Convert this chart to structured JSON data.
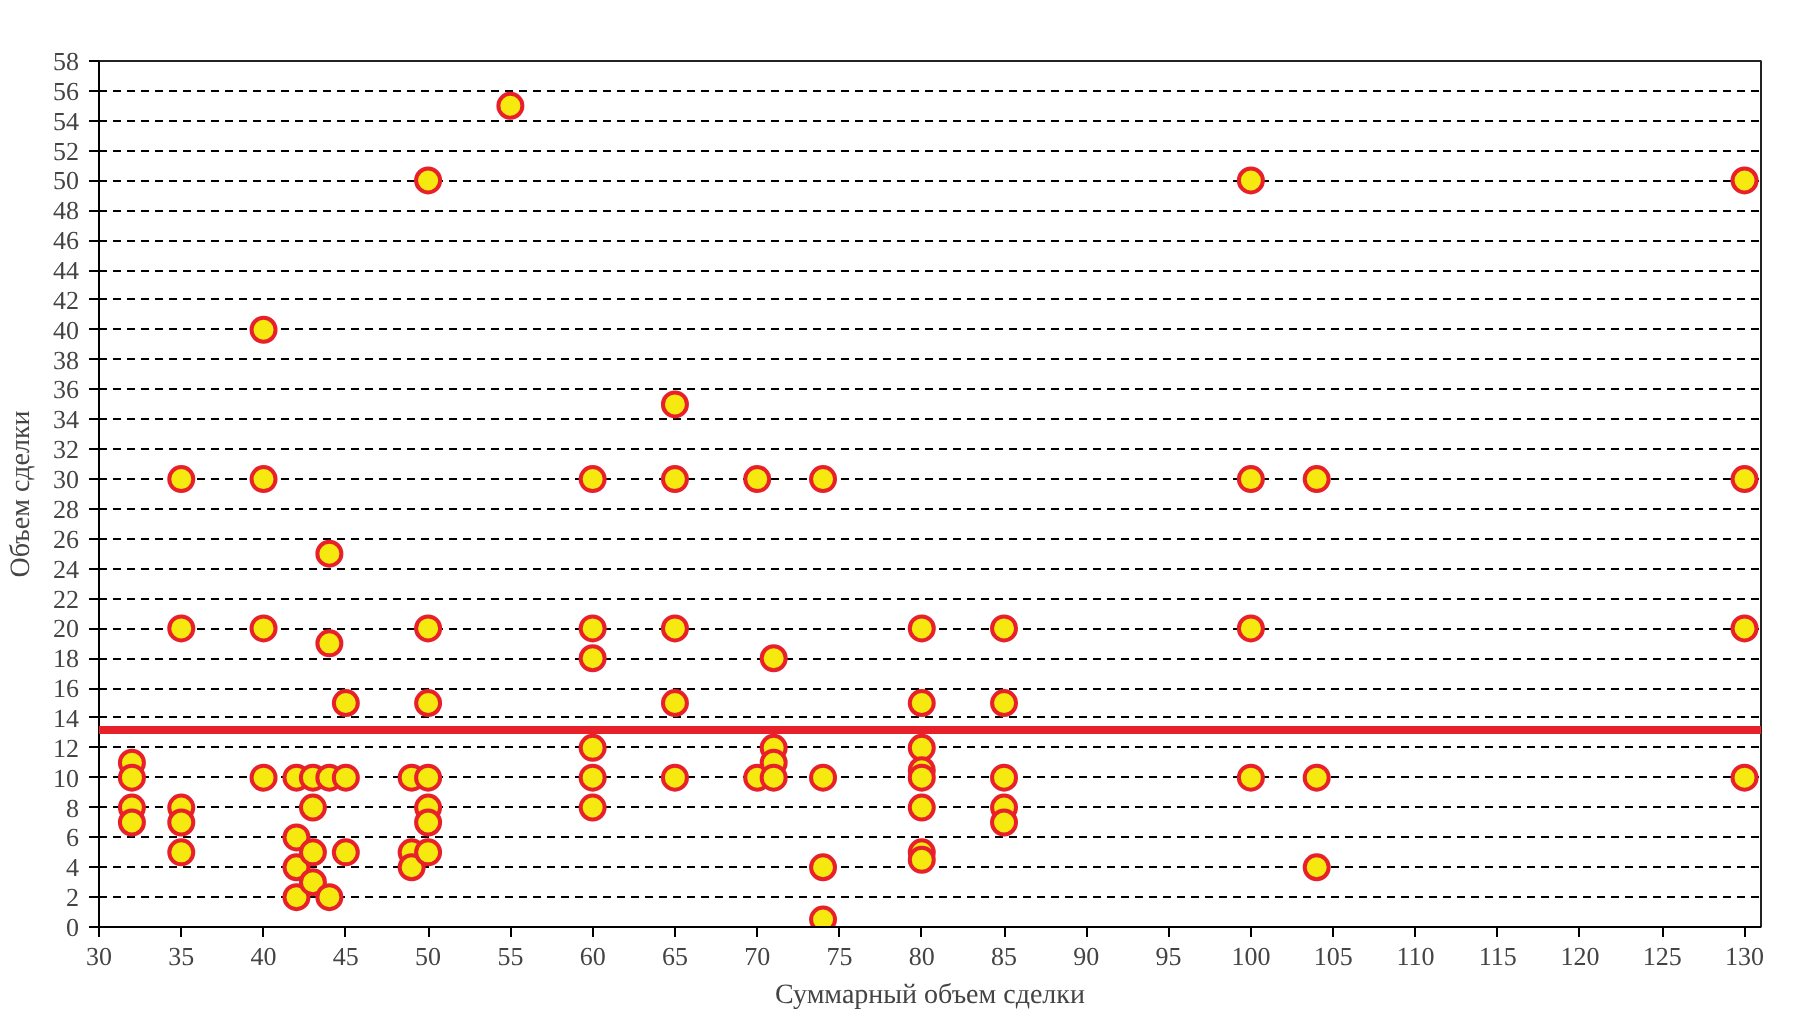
{
  "chart_data": {
    "type": "scatter",
    "xlabel": "Суммарный объем сделки",
    "ylabel": "Объем сделки",
    "x": [
      32,
      32,
      32,
      32,
      35,
      35,
      35,
      35,
      35,
      40,
      40,
      40,
      40,
      42,
      42,
      42,
      42,
      43,
      43,
      43,
      43,
      44,
      44,
      44,
      44,
      45,
      45,
      45,
      49,
      49,
      49,
      50,
      50,
      50,
      50,
      50,
      50,
      50,
      55,
      60,
      60,
      60,
      60,
      60,
      60,
      65,
      65,
      65,
      65,
      65,
      70,
      70,
      71,
      71,
      71,
      71,
      74,
      74,
      74,
      74,
      80,
      80,
      80,
      80,
      80,
      80,
      80,
      80,
      85,
      85,
      85,
      85,
      85,
      100,
      100,
      100,
      100,
      104,
      104,
      104,
      130,
      130,
      130,
      130
    ],
    "series": [
      {
        "color": "#f5e90f",
        "values": [
          11,
          10,
          8,
          7,
          30,
          20,
          8,
          7,
          5,
          40,
          30,
          20,
          10,
          10,
          6,
          4,
          2,
          10,
          8,
          5,
          3,
          25,
          19,
          10,
          2,
          15,
          10,
          5,
          10,
          5,
          4,
          50,
          20,
          15,
          10,
          8,
          7,
          5,
          55,
          30,
          20,
          18,
          12,
          10,
          8,
          35,
          30,
          20,
          15,
          10,
          30,
          10,
          18,
          12,
          11,
          10,
          30,
          10,
          4,
          0.5,
          20,
          15,
          12,
          10.5,
          10,
          8,
          5,
          4.5,
          20,
          15,
          10,
          8,
          7,
          50,
          30,
          20,
          10,
          30,
          10,
          4,
          50,
          30,
          20,
          10
        ]
      }
    ],
    "marker": "circle",
    "grid": "y",
    "line_style": "dashed",
    "xlim": [
      30,
      131
    ],
    "ylim": [
      0,
      58
    ],
    "xticks": [
      30,
      35,
      40,
      45,
      50,
      55,
      60,
      65,
      70,
      75,
      80,
      85,
      90,
      95,
      100,
      105,
      110,
      115,
      120,
      125,
      130
    ],
    "yticks": [
      0,
      2,
      4,
      6,
      8,
      10,
      12,
      14,
      16,
      18,
      20,
      22,
      24,
      26,
      28,
      30,
      32,
      34,
      36,
      38,
      40,
      42,
      44,
      46,
      48,
      50,
      52,
      54,
      56,
      58
    ],
    "ref_lines": [
      {
        "axis": "y",
        "value": 13.2,
        "color": "#e8202a"
      }
    ]
  }
}
